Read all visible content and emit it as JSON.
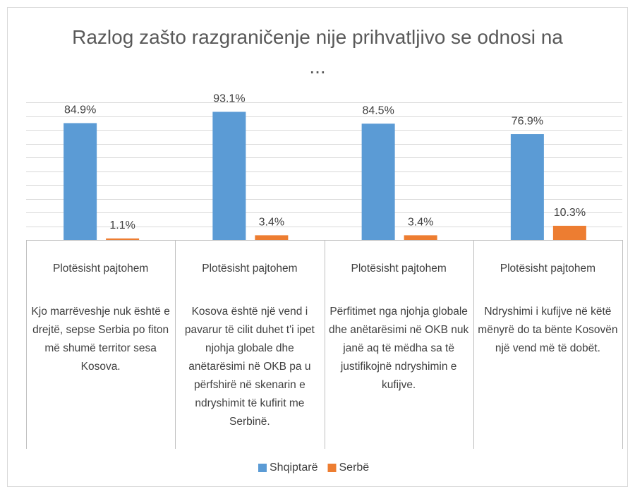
{
  "chart_data": {
    "type": "bar",
    "title": "Razlog zašto razgraničenje nije prihvatljivo se odnosi na ...",
    "sublabels": [
      "Plotësisht pajtohem",
      "Plotësisht pajtohem",
      "Plotësisht pajtohem",
      "Plotësisht pajtohem"
    ],
    "categories": [
      "Kjo marrëveshje nuk është e drejtë, sepse Serbia po fiton më shumë territor sesa Kosova.",
      "Kosova është një vend i pavarur të cilit duhet t'i ipet njohja globale dhe anëtarësimi në OKB pa u përfshirë në skenarin e ndryshimit të kufirit me Serbinë.",
      "Përfitimet nga njohja globale dhe anëtarësimi në OKB nuk janë aq të mëdha sa të justifikojnë ndryshimin e kufijve.",
      "Ndryshimi i kufijve në këtë mënyrë do ta bënte Kosovën një vend më të dobët."
    ],
    "series": [
      {
        "name": "Shqiptarë",
        "color": "#5b9bd5",
        "values": [
          84.9,
          93.1,
          84.5,
          76.9
        ],
        "value_labels": [
          "84.9%",
          "93.1%",
          "84.5%",
          "76.9%"
        ]
      },
      {
        "name": "Serbë",
        "color": "#ed7d31",
        "values": [
          1.1,
          3.4,
          3.4,
          10.3
        ],
        "value_labels": [
          "1.1%",
          "3.4%",
          "3.4%",
          "10.3%"
        ]
      }
    ],
    "ylim": [
      0,
      100
    ],
    "yticks": [
      0,
      10,
      20,
      30,
      40,
      50,
      60,
      70,
      80,
      90,
      100
    ],
    "grid": true,
    "legend": "bottom"
  }
}
